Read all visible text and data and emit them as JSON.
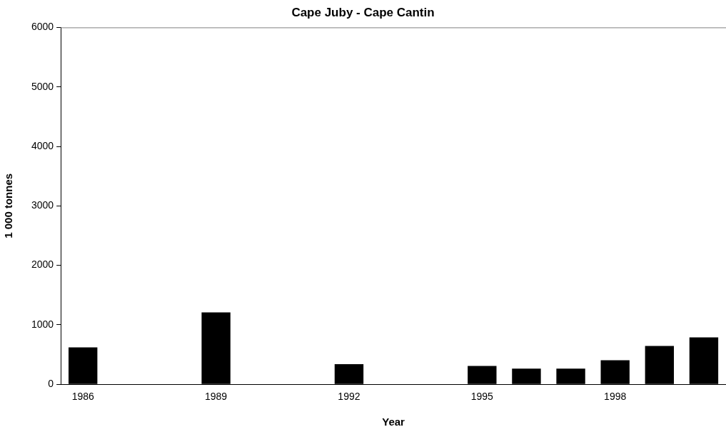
{
  "chart_data": {
    "type": "bar",
    "title": "Cape Juby - Cape Cantin",
    "xlabel": "Year",
    "ylabel": "1 000 tonnes",
    "categories": [
      "1986",
      null,
      null,
      "1989",
      null,
      null,
      "1992",
      null,
      null,
      "1995",
      null,
      null,
      "1998",
      null,
      null
    ],
    "values": [
      620,
      0,
      0,
      1210,
      0,
      0,
      340,
      0,
      0,
      310,
      265,
      265,
      405,
      645,
      790
    ],
    "color": "#000000",
    "ylim": [
      0,
      6000
    ],
    "yticks": [
      0,
      1000,
      2000,
      3000,
      4000,
      5000,
      6000
    ],
    "grid": false,
    "legend": false
  }
}
